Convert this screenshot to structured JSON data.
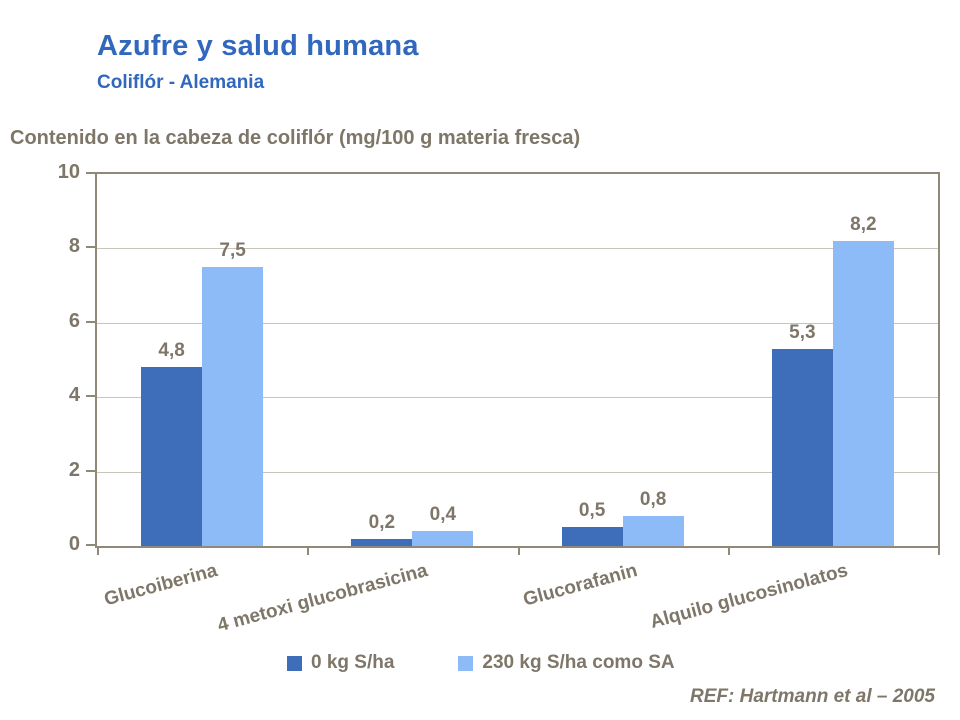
{
  "slide": {
    "title": "Azufre y salud humana",
    "subtitle": "Coliflór - Alemania",
    "reference": "REF: Hartmann et al – 2005"
  },
  "colors": {
    "title_blue": "#3168BE",
    "text_brown": "#7E7668",
    "axis_border": "#908878",
    "gridline": "#C8C4BA",
    "series1": "#3E6EB9",
    "series2": "#8CBBF8"
  },
  "chart_data": {
    "type": "bar",
    "title": "Contenido en la cabeza de coliflór (mg/100 g materia fresca)",
    "categories": [
      "Glucoiberina",
      "4 metoxi glucobrasicina",
      "Glucorafanin",
      "Alquilo glucosinolatos"
    ],
    "series": [
      {
        "name": "0 kg S/ha",
        "color": "#3E6EB9",
        "values": [
          4.8,
          0.2,
          0.5,
          5.3
        ]
      },
      {
        "name": "230 kg S/ha como SA",
        "color": "#8CBBF8",
        "values": [
          7.5,
          0.4,
          0.8,
          8.2
        ]
      }
    ],
    "decimal_separator": ",",
    "xlabel": "",
    "ylabel": "",
    "ylim": [
      0,
      10
    ],
    "yticks": [
      0,
      2,
      4,
      6,
      8,
      10
    ],
    "grid": true,
    "legend_position": "bottom"
  }
}
